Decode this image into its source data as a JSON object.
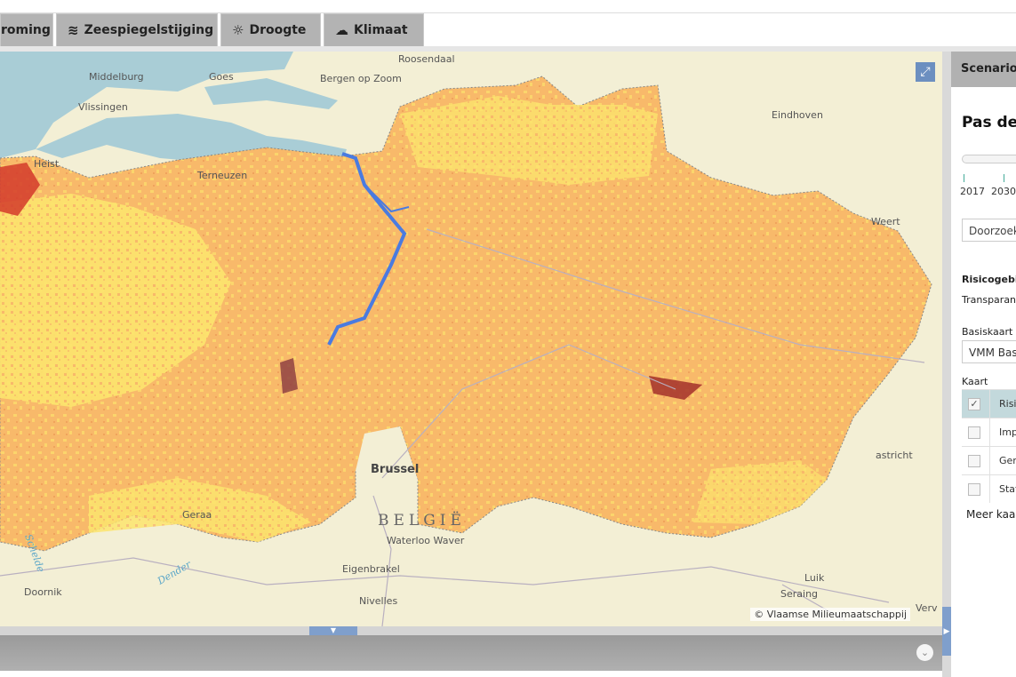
{
  "tabs": [
    {
      "label": "roming",
      "icon": "flood-icon"
    },
    {
      "label": "Zeespiegelstijging",
      "icon": "waves-icon"
    },
    {
      "label": "Droogte",
      "icon": "drought-icon"
    },
    {
      "label": "Klimaat",
      "icon": "sun-cloud-icon"
    }
  ],
  "map": {
    "labels": [
      {
        "text": "Roosendaal",
        "kind": "city"
      },
      {
        "text": "Middelburg",
        "kind": "city"
      },
      {
        "text": "Goes",
        "kind": "city"
      },
      {
        "text": "Bergen op Zoom",
        "kind": "city"
      },
      {
        "text": "Vlissingen",
        "kind": "city"
      },
      {
        "text": "Eindhoven",
        "kind": "city"
      },
      {
        "text": "Heist",
        "kind": "city"
      },
      {
        "text": "Terneuzen",
        "kind": "city"
      },
      {
        "text": "Weert",
        "kind": "city"
      },
      {
        "text": "Brussel",
        "kind": "capital"
      },
      {
        "text": "BELGIË",
        "kind": "country"
      },
      {
        "text": "Waterloo Waver",
        "kind": "city"
      },
      {
        "text": "Eigenbrakel",
        "kind": "city"
      },
      {
        "text": "Nivelles",
        "kind": "city"
      },
      {
        "text": "Doornik",
        "kind": "city"
      },
      {
        "text": "Dender",
        "kind": "river"
      },
      {
        "text": "Schelde",
        "kind": "river"
      },
      {
        "text": "Luik",
        "kind": "city"
      },
      {
        "text": "Seraing",
        "kind": "city"
      },
      {
        "text": "Verv",
        "kind": "city"
      },
      {
        "text": "astricht",
        "kind": "city"
      },
      {
        "text": "Geraa",
        "kind": "city"
      }
    ],
    "attribution": "© Vlaamse Milieumaatschappij",
    "colors": {
      "base": "#f3efd5",
      "sea": "#a9cdd6",
      "risk_medium": "#f8b96a",
      "risk_low": "#fce46d",
      "risk_high": "#d43a2a",
      "water": "#4a7be0"
    }
  },
  "panel": {
    "header": "Scenarios",
    "title": "Pas de",
    "years": [
      "2017",
      "2030"
    ],
    "search_placeholder": "Doorzoek",
    "risk_label": "Risicogebie",
    "transparency_label": "Transparan",
    "basemap_label": "Basiskaart",
    "basemap_value": "VMM Bas",
    "layers_label": "Kaart",
    "layers": [
      {
        "label": "Risic",
        "checked": true
      },
      {
        "label": "Impa",
        "checked": false
      },
      {
        "label": "Gem",
        "checked": false
      },
      {
        "label": "Stati",
        "checked": false
      }
    ],
    "more_link": "Meer kaar"
  }
}
